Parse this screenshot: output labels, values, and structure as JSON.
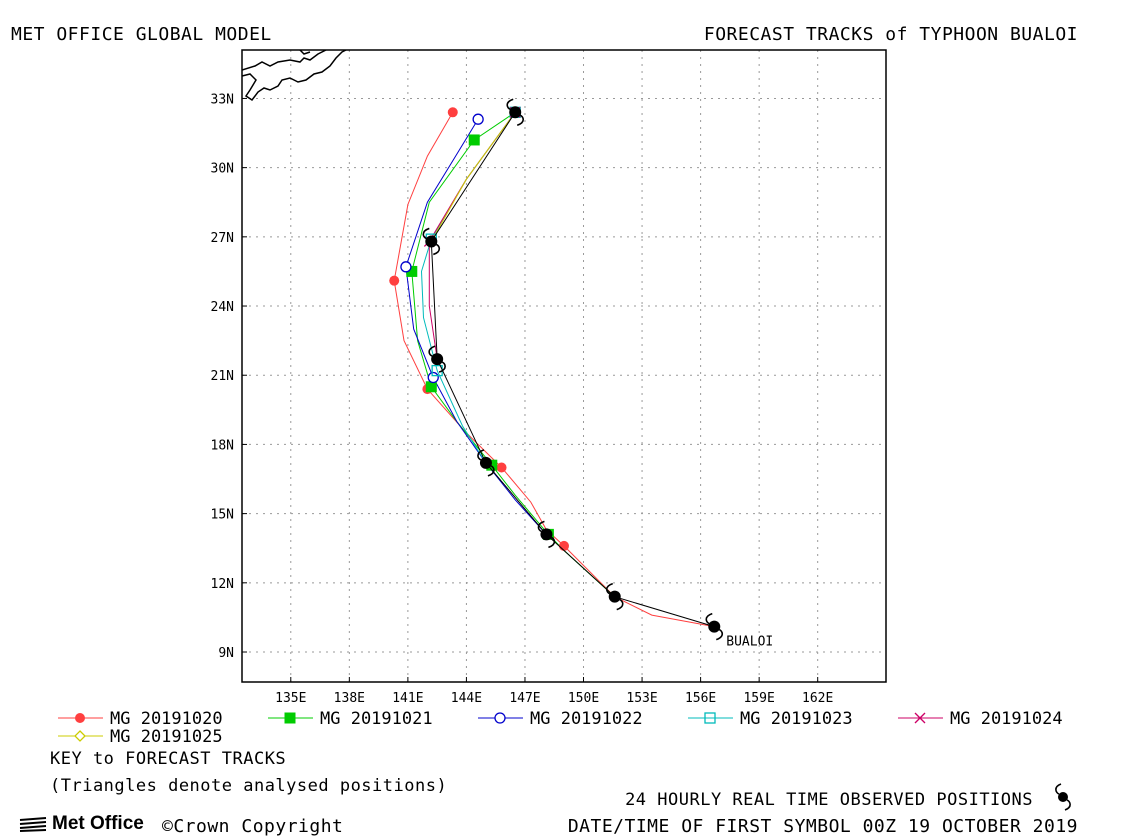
{
  "header": {
    "left_title": "MET OFFICE GLOBAL MODEL",
    "right_title": "FORECAST TRACKS of TYPHOON BUALOI"
  },
  "footer": {
    "key_title": "KEY to FORECAST TRACKS",
    "key_note": "(Triangles denote analysed positions)",
    "observed_label": "24 HOURLY REAL TIME OBSERVED POSITIONS",
    "first_symbol": "DATE/TIME OF FIRST SYMBOL 00Z 19 OCTOBER 2019",
    "logo_text": "Met Office",
    "copyright": "©Crown Copyright"
  },
  "chart_data": {
    "type": "line",
    "title": "FORECAST TRACKS of TYPHOON BUALOI",
    "x_axis": {
      "ticks": [
        "135E",
        "138E",
        "141E",
        "144E",
        "147E",
        "150E",
        "153E",
        "156E",
        "159E",
        "162E"
      ],
      "values": [
        135,
        138,
        141,
        144,
        147,
        150,
        153,
        156,
        159,
        162
      ],
      "range": [
        132.5,
        165.5
      ]
    },
    "y_axis": {
      "ticks": [
        "9N",
        "12N",
        "15N",
        "18N",
        "21N",
        "24N",
        "27N",
        "30N",
        "33N"
      ],
      "values": [
        9,
        12,
        15,
        18,
        21,
        24,
        27,
        30,
        33
      ],
      "range": [
        7.7,
        35.1
      ]
    },
    "grid": true,
    "storm_label": "BUALOI",
    "observed": {
      "name": "24 HOURLY REAL TIME OBSERVED POSITIONS",
      "color": "#000000",
      "points": [
        [
          156.7,
          10.1
        ],
        [
          151.6,
          11.4
        ],
        [
          148.1,
          14.1
        ],
        [
          145.0,
          17.2
        ],
        [
          142.5,
          21.7
        ],
        [
          142.2,
          26.8
        ],
        [
          146.5,
          32.4
        ]
      ]
    },
    "series": [
      {
        "name": "MG 20191020",
        "color": "#ff3f3f",
        "marker": "filled-circle",
        "points": [
          [
            156.7,
            10.1
          ],
          [
            153.5,
            10.6
          ],
          [
            151.6,
            11.4
          ],
          [
            149.0,
            13.6
          ],
          [
            148.1,
            14.3
          ],
          [
            147.3,
            15.5
          ],
          [
            145.8,
            17.0
          ],
          [
            144.0,
            18.5
          ],
          [
            142.0,
            20.4
          ],
          [
            140.8,
            22.5
          ],
          [
            140.3,
            25.1
          ],
          [
            141.0,
            28.4
          ],
          [
            142.0,
            30.5
          ],
          [
            143.3,
            32.4
          ]
        ],
        "marker_points": [
          [
            151.6,
            11.4
          ],
          [
            149.0,
            13.6
          ],
          [
            145.8,
            17.0
          ],
          [
            142.0,
            20.4
          ],
          [
            140.3,
            25.1
          ],
          [
            143.3,
            32.4
          ]
        ]
      },
      {
        "name": "MG 20191021",
        "color": "#00cc00",
        "marker": "filled-square",
        "points": [
          [
            151.6,
            11.4
          ],
          [
            149.0,
            13.4
          ],
          [
            148.2,
            14.1
          ],
          [
            146.5,
            15.8
          ],
          [
            145.3,
            17.1
          ],
          [
            143.5,
            19.0
          ],
          [
            142.2,
            20.5
          ],
          [
            141.5,
            22.5
          ],
          [
            141.2,
            25.5
          ],
          [
            142.1,
            28.5
          ],
          [
            144.4,
            31.2
          ],
          [
            146.5,
            32.4
          ]
        ],
        "marker_points": [
          [
            148.2,
            14.1
          ],
          [
            145.3,
            17.1
          ],
          [
            142.2,
            20.5
          ],
          [
            141.2,
            25.5
          ],
          [
            144.4,
            31.2
          ]
        ]
      },
      {
        "name": "MG 20191022",
        "color": "#0000cc",
        "marker": "open-circle",
        "points": [
          [
            148.1,
            14.1
          ],
          [
            146.5,
            15.6
          ],
          [
            145.0,
            17.2
          ],
          [
            143.5,
            19.0
          ],
          [
            142.3,
            20.9
          ],
          [
            141.3,
            23.0
          ],
          [
            140.9,
            25.7
          ],
          [
            142.0,
            28.5
          ],
          [
            143.3,
            30.3
          ],
          [
            144.6,
            32.1
          ]
        ],
        "marker_points": [
          [
            145.0,
            17.2
          ],
          [
            142.3,
            20.9
          ],
          [
            140.9,
            25.7
          ],
          [
            144.6,
            32.1
          ]
        ]
      },
      {
        "name": "MG 20191023",
        "color": "#00bbbb",
        "marker": "open-square",
        "points": [
          [
            145.0,
            17.2
          ],
          [
            143.8,
            18.8
          ],
          [
            142.5,
            21.2
          ],
          [
            141.8,
            23.5
          ],
          [
            141.7,
            25.5
          ],
          [
            142.2,
            26.9
          ],
          [
            144.0,
            29.5
          ],
          [
            146.5,
            32.4
          ]
        ],
        "marker_points": [
          [
            142.5,
            21.2
          ],
          [
            142.2,
            26.9
          ],
          [
            146.5,
            32.4
          ]
        ]
      },
      {
        "name": "MG 20191024",
        "color": "#cc0066",
        "marker": "cross",
        "points": [
          [
            142.5,
            21.7
          ],
          [
            142.1,
            24.0
          ],
          [
            142.1,
            26.8
          ],
          [
            144.0,
            29.5
          ],
          [
            146.5,
            32.4
          ]
        ],
        "marker_points": [
          [
            142.1,
            26.8
          ],
          [
            146.5,
            32.4
          ]
        ]
      },
      {
        "name": "MG 20191025",
        "color": "#cccc00",
        "marker": "open-diamond",
        "points": [
          [
            142.2,
            26.8
          ],
          [
            144.0,
            29.5
          ],
          [
            146.5,
            32.4
          ]
        ],
        "marker_points": [
          [
            146.5,
            32.4
          ]
        ]
      }
    ]
  }
}
